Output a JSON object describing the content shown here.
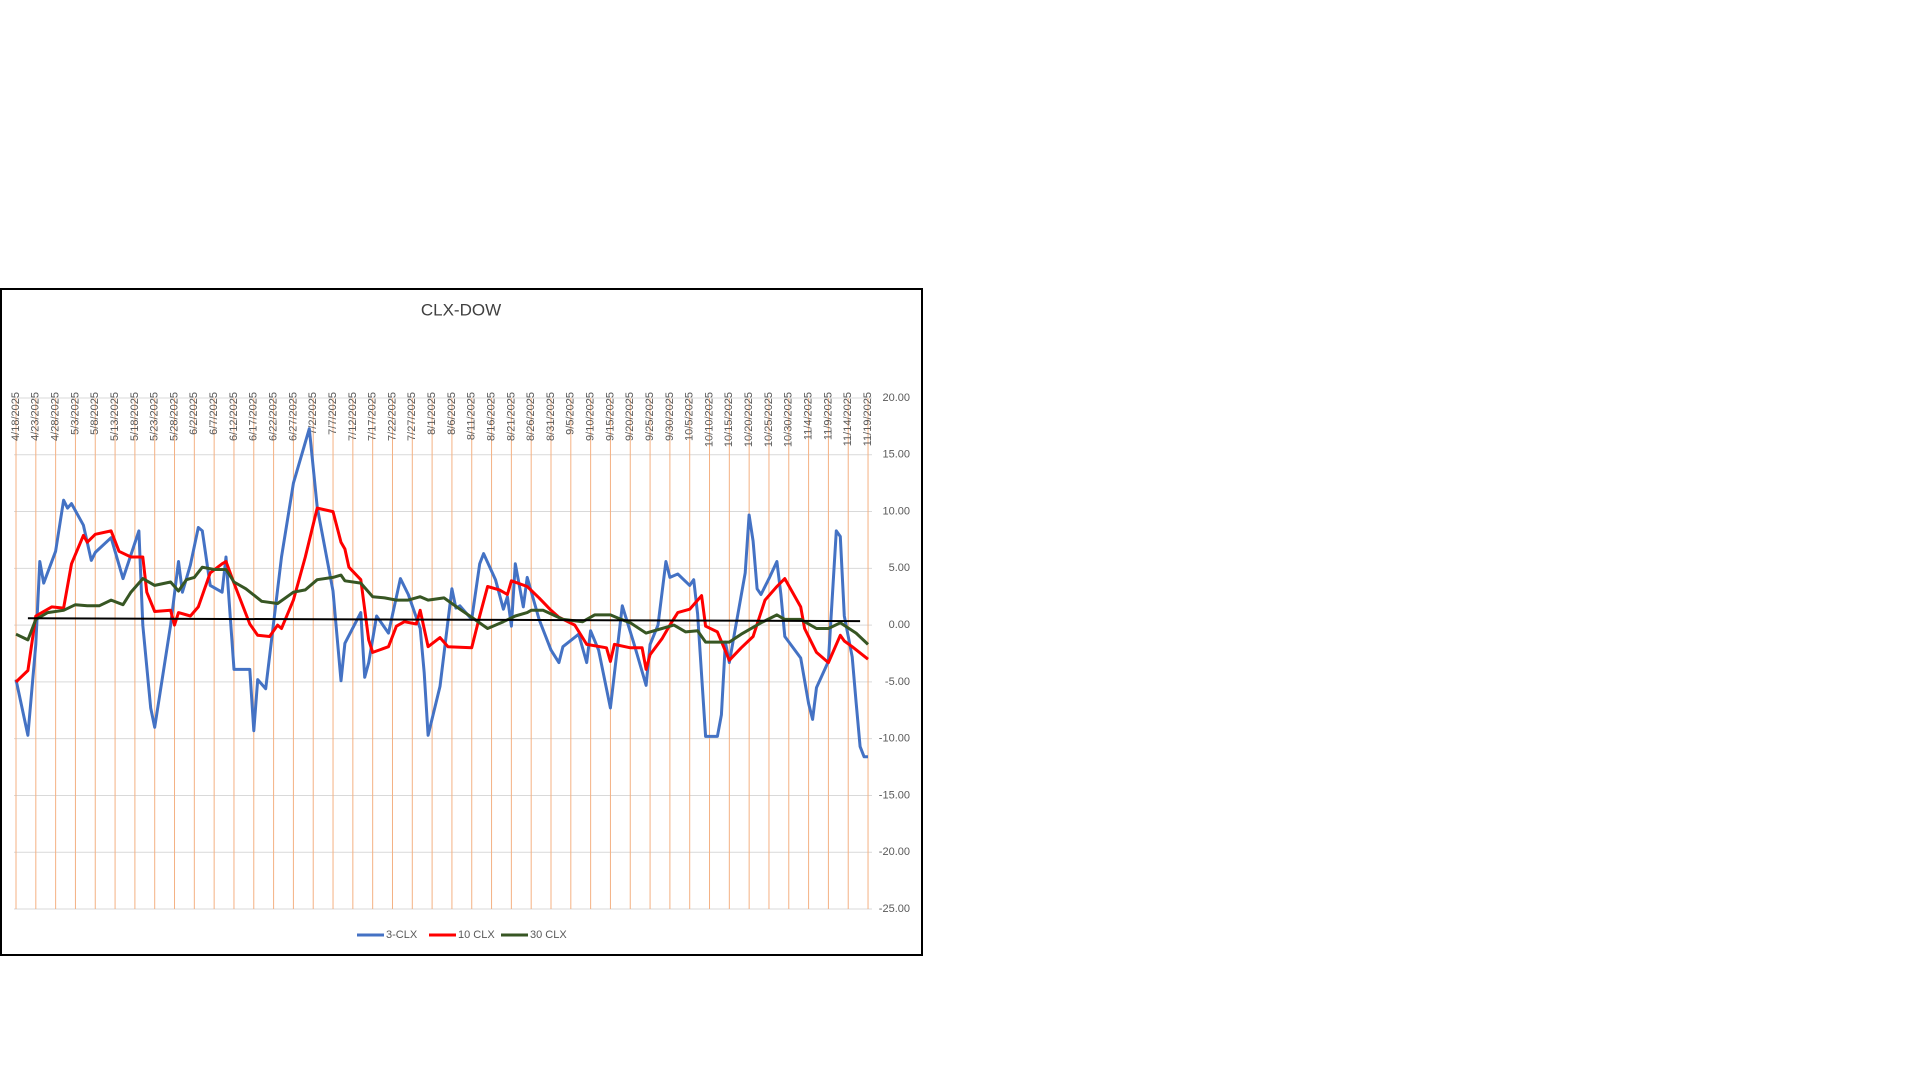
{
  "chart_data": {
    "type": "line",
    "title": "CLX-DOW",
    "xlim": [
      "4/18/2025",
      "11/20/2025"
    ],
    "xticks": [
      "4/18/2025",
      "4/23/2025",
      "4/28/2025",
      "5/3/2025",
      "5/8/2025",
      "5/13/2025",
      "5/18/2025",
      "5/23/2025",
      "5/28/2025",
      "6/2/2025",
      "6/7/2025",
      "6/12/2025",
      "6/17/2025",
      "6/22/2025",
      "6/27/2025",
      "7/2/2025",
      "7/7/2025",
      "7/12/2025",
      "7/17/2025",
      "7/22/2025",
      "7/27/2025",
      "8/1/2025",
      "8/6/2025",
      "8/11/2025",
      "8/16/2025",
      "8/21/2025",
      "8/26/2025",
      "8/31/2025",
      "9/5/2025",
      "9/10/2025",
      "9/15/2025",
      "9/20/2025",
      "9/25/2025",
      "9/30/2025",
      "10/5/2025",
      "10/10/2025",
      "10/15/2025",
      "10/20/2025",
      "10/25/2025",
      "10/30/2025",
      "11/4/2025",
      "11/9/2025",
      "11/14/2025",
      "11/19/2025"
    ],
    "ylim": [
      -25,
      20
    ],
    "yticks": [
      {
        "value": 20,
        "label": "20.00"
      },
      {
        "value": 15,
        "label": "15.00"
      },
      {
        "value": 10,
        "label": "10.00"
      },
      {
        "value": 5,
        "label": "5.00"
      },
      {
        "value": 0,
        "label": "0.00"
      },
      {
        "value": -5,
        "label": "-5.00"
      },
      {
        "value": -10,
        "label": "-10.00"
      },
      {
        "value": -15,
        "label": "-15.00"
      },
      {
        "value": -20,
        "label": "-20.00"
      },
      {
        "value": -25,
        "label": "-25.00"
      }
    ],
    "grid": true,
    "grid_color": "#d9d9d9",
    "xgrid_color": "#f4b183",
    "legend": "bottom",
    "series": [
      {
        "name": "3-CLX",
        "color": "#4472c4",
        "x": [
          "4/18/2025",
          "4/21/2025",
          "4/23/2025",
          "4/24/2025",
          "4/25/2025",
          "4/28/2025",
          "4/30/2025",
          "5/1/2025",
          "5/2/2025",
          "5/5/2025",
          "5/7/2025",
          "5/8/2025",
          "5/12/2025",
          "5/15/2025",
          "5/19/2025",
          "5/20/2025",
          "5/22/2025",
          "5/23/2025",
          "5/27/2025",
          "5/29/2025",
          "5/30/2025",
          "6/1/2025",
          "6/3/2025",
          "6/4/2025",
          "6/6/2025",
          "6/9/2025",
          "6/10/2025",
          "6/12/2025",
          "6/16/2025",
          "6/17/2025",
          "6/18/2025",
          "6/20/2025",
          "6/24/2025",
          "6/27/2025",
          "7/1/2025",
          "7/3/2025",
          "7/7/2025",
          "7/9/2025",
          "7/10/2025",
          "7/14/2025",
          "7/15/2025",
          "7/16/2025",
          "7/18/2025",
          "7/21/2025",
          "7/24/2025",
          "7/26/2025",
          "7/29/2025",
          "7/30/2025",
          "7/31/2025",
          "8/3/2025",
          "8/6/2025",
          "8/7/2025",
          "8/8/2025",
          "8/11/2025",
          "8/13/2025",
          "8/14/2025",
          "8/17/2025",
          "8/19/2025",
          "8/20/2025",
          "8/21/2025",
          "8/22/2025",
          "8/24/2025",
          "8/25/2025",
          "8/28/2025",
          "8/31/2025",
          "9/2/2025",
          "9/3/2025",
          "9/7/2025",
          "9/9/2025",
          "9/10/2025",
          "9/12/2025",
          "9/15/2025",
          "9/18/2025",
          "9/21/2025",
          "9/24/2025",
          "9/25/2025",
          "9/27/2025",
          "9/29/2025",
          "9/30/2025",
          "10/2/2025",
          "10/5/2025",
          "10/6/2025",
          "10/7/2025",
          "10/9/2025",
          "10/12/2025",
          "10/13/2025",
          "10/14/2025",
          "10/15/2025",
          "10/19/2025",
          "10/20/2025",
          "10/21/2025",
          "10/22/2025",
          "10/23/2025",
          "10/25/2025",
          "10/27/2025",
          "10/28/2025",
          "10/29/2025",
          "11/2/2025",
          "11/4/2025",
          "11/5/2025",
          "11/6/2025",
          "11/9/2025",
          "11/11/2025",
          "11/12/2025",
          "11/13/2025",
          "11/15/2025",
          "11/16/2025",
          "11/17/2025",
          "11/18/2025",
          "11/19/2025"
        ],
        "values": [
          -4.8,
          -9.7,
          -1.7,
          5.6,
          3.7,
          6.5,
          11,
          10.3,
          10.7,
          8.8,
          5.7,
          6.4,
          7.7,
          4.1,
          8.3,
          0,
          -7.3,
          -9,
          0,
          5.6,
          2.9,
          5.3,
          8.6,
          8.3,
          3.5,
          2.9,
          6,
          -3.9,
          -3.9,
          -9.3,
          -4.8,
          -5.6,
          6,
          12.5,
          17.3,
          10.4,
          3,
          -4.9,
          -1.6,
          1.1,
          -4.6,
          -3.3,
          0.8,
          -0.7,
          4.1,
          2.7,
          -0.3,
          -4.2,
          -9.7,
          -5.4,
          3.2,
          1.5,
          1.7,
          0.5,
          5.4,
          6.3,
          4,
          1.4,
          2.5,
          -0.1,
          5.4,
          1.6,
          4.2,
          0.5,
          -2.2,
          -3.3,
          -1.9,
          -0.8,
          -3.3,
          -0.5,
          -2.2,
          -7.3,
          1.7,
          -1.7,
          -5.3,
          -1.7,
          0,
          5.6,
          4.2,
          4.5,
          3.5,
          4,
          1,
          -9.8,
          -9.8,
          -7.9,
          -1.5,
          -3.3,
          4.6,
          9.7,
          7.4,
          3.2,
          2.7,
          4.1,
          5.6,
          2.7,
          -1,
          -2.9,
          -6.9,
          -8.3,
          -5.5,
          -3.2,
          8.3,
          7.8,
          0.8,
          -2.8,
          -6.8,
          -10.7,
          -11.6,
          -11.6
        ]
      },
      {
        "name": "10 CLX",
        "color": "#ff0000",
        "x": [
          "4/18/2025",
          "4/21/2025",
          "4/23/2025",
          "4/27/2025",
          "4/30/2025",
          "5/2/2025",
          "5/5/2025",
          "5/6/2025",
          "5/8/2025",
          "5/12/2025",
          "5/14/2025",
          "5/17/2025",
          "5/20/2025",
          "5/21/2025",
          "5/23/2025",
          "5/27/2025",
          "5/28/2025",
          "5/29/2025",
          "6/1/2025",
          "6/3/2025",
          "6/6/2025",
          "6/9/2025",
          "6/10/2025",
          "6/12/2025",
          "6/16/2025",
          "6/18/2025",
          "6/21/2025",
          "6/23/2025",
          "6/24/2025",
          "6/27/2025",
          "6/30/2025",
          "7/3/2025",
          "7/7/2025",
          "7/9/2025",
          "7/10/2025",
          "7/11/2025",
          "7/14/2025",
          "7/16/2025",
          "7/17/2025",
          "7/21/2025",
          "7/23/2025",
          "7/25/2025",
          "7/28/2025",
          "7/29/2025",
          "7/31/2025",
          "8/3/2025",
          "8/5/2025",
          "8/11/2025",
          "8/13/2025",
          "8/15/2025",
          "8/18/2025",
          "8/20/2025",
          "8/21/2025",
          "8/25/2025",
          "8/28/2025",
          "8/31/2025",
          "9/2/2025",
          "9/6/2025",
          "9/9/2025",
          "9/14/2025",
          "9/15/2025",
          "9/16/2025",
          "9/20/2025",
          "9/23/2025",
          "9/24/2025",
          "9/25/2025",
          "9/28/2025",
          "9/30/2025",
          "10/2/2025",
          "10/5/2025",
          "10/8/2025",
          "10/9/2025",
          "10/12/2025",
          "10/15/2025",
          "10/18/2025",
          "10/21/2025",
          "10/24/2025",
          "10/27/2025",
          "10/29/2025",
          "11/2/2025",
          "11/3/2025",
          "11/6/2025",
          "11/9/2025",
          "11/12/2025",
          "11/13/2025",
          "11/15/2025",
          "11/19/2025"
        ],
        "values": [
          -5,
          -4,
          0.8,
          1.6,
          1.5,
          5.4,
          7.9,
          7.3,
          8,
          8.3,
          6.5,
          6,
          6,
          2.9,
          1.2,
          1.3,
          0,
          1.1,
          0.8,
          1.6,
          4.6,
          5.4,
          5.6,
          3.7,
          0.1,
          -0.9,
          -1,
          0,
          -0.3,
          2.2,
          6,
          10.3,
          10,
          7.3,
          6.7,
          5.1,
          4,
          -1.3,
          -2.4,
          -1.9,
          -0.1,
          0.3,
          0.1,
          1.3,
          -1.9,
          -1.1,
          -1.9,
          -2,
          0.8,
          3.4,
          3.1,
          2.7,
          3.9,
          3.4,
          2.4,
          1.3,
          0.7,
          0,
          -1.7,
          -2,
          -3.2,
          -1.7,
          -2,
          -2,
          -3.9,
          -2.6,
          -1.2,
          0,
          1.1,
          1.4,
          2.6,
          -0.1,
          -0.6,
          -3.1,
          -2,
          -1,
          2.2,
          3.4,
          4.1,
          1.6,
          -0.3,
          -2.4,
          -3.3,
          -0.9,
          -1.4,
          -1.9,
          -3
        ]
      },
      {
        "name": "30 CLX",
        "color": "#375623",
        "x": [
          "4/18/2025",
          "4/21/2025",
          "4/23/2025",
          "4/26/2025",
          "4/30/2025",
          "5/3/2025",
          "5/6/2025",
          "5/9/2025",
          "5/12/2025",
          "5/15/2025",
          "5/17/2025",
          "5/20/2025",
          "5/23/2025",
          "5/27/2025",
          "5/29/2025",
          "5/31/2025",
          "6/2/2025",
          "6/4/2025",
          "6/7/2025",
          "6/10/2025",
          "6/12/2025",
          "6/15/2025",
          "6/19/2025",
          "6/23/2025",
          "6/25/2025",
          "6/27/2025",
          "6/30/2025",
          "7/3/2025",
          "7/7/2025",
          "7/9/2025",
          "7/10/2025",
          "7/14/2025",
          "7/17/2025",
          "7/20/2025",
          "7/23/2025",
          "7/26/2025",
          "7/29/2025",
          "7/31/2025",
          "8/4/2025",
          "8/8/2025",
          "8/11/2025",
          "8/15/2025",
          "8/19/2025",
          "8/22/2025",
          "8/25/2025",
          "8/26/2025",
          "8/29/2025",
          "9/3/2025",
          "9/8/2025",
          "9/11/2025",
          "9/15/2025",
          "9/17/2025",
          "9/20/2025",
          "9/24/2025",
          "9/28/2025",
          "10/1/2025",
          "10/4/2025",
          "10/7/2025",
          "10/9/2025",
          "10/15/2025",
          "10/18/2025",
          "10/23/2025",
          "10/27/2025",
          "10/29/2025",
          "11/2/2025",
          "11/6/2025",
          "11/9/2025",
          "11/12/2025",
          "11/16/2025",
          "11/19/2025"
        ],
        "values": [
          -0.8,
          -1.3,
          0.5,
          1.1,
          1.3,
          1.8,
          1.7,
          1.7,
          2.2,
          1.8,
          2.9,
          4.1,
          3.5,
          3.8,
          3,
          4,
          4.2,
          5.1,
          4.9,
          4.9,
          3.8,
          3.2,
          2.1,
          1.9,
          2.4,
          2.9,
          3.1,
          4,
          4.2,
          4.4,
          3.9,
          3.7,
          2.5,
          2.4,
          2.2,
          2.2,
          2.5,
          2.2,
          2.4,
          1.4,
          0.7,
          -0.3,
          0.3,
          0.8,
          1.1,
          1.3,
          1.3,
          0.5,
          0.3,
          0.9,
          0.9,
          0.6,
          0.2,
          -0.7,
          -0.3,
          0,
          -0.6,
          -0.5,
          -1.5,
          -1.5,
          -0.8,
          0.2,
          0.9,
          0.5,
          0.5,
          -0.3,
          -0.3,
          0.2,
          -0.7,
          -1.7
        ]
      }
    ],
    "trendline": {
      "color": "#000000",
      "x": [
        "4/21/2025",
        "11/17/2025"
      ],
      "values": [
        0.6,
        0.35
      ]
    }
  }
}
